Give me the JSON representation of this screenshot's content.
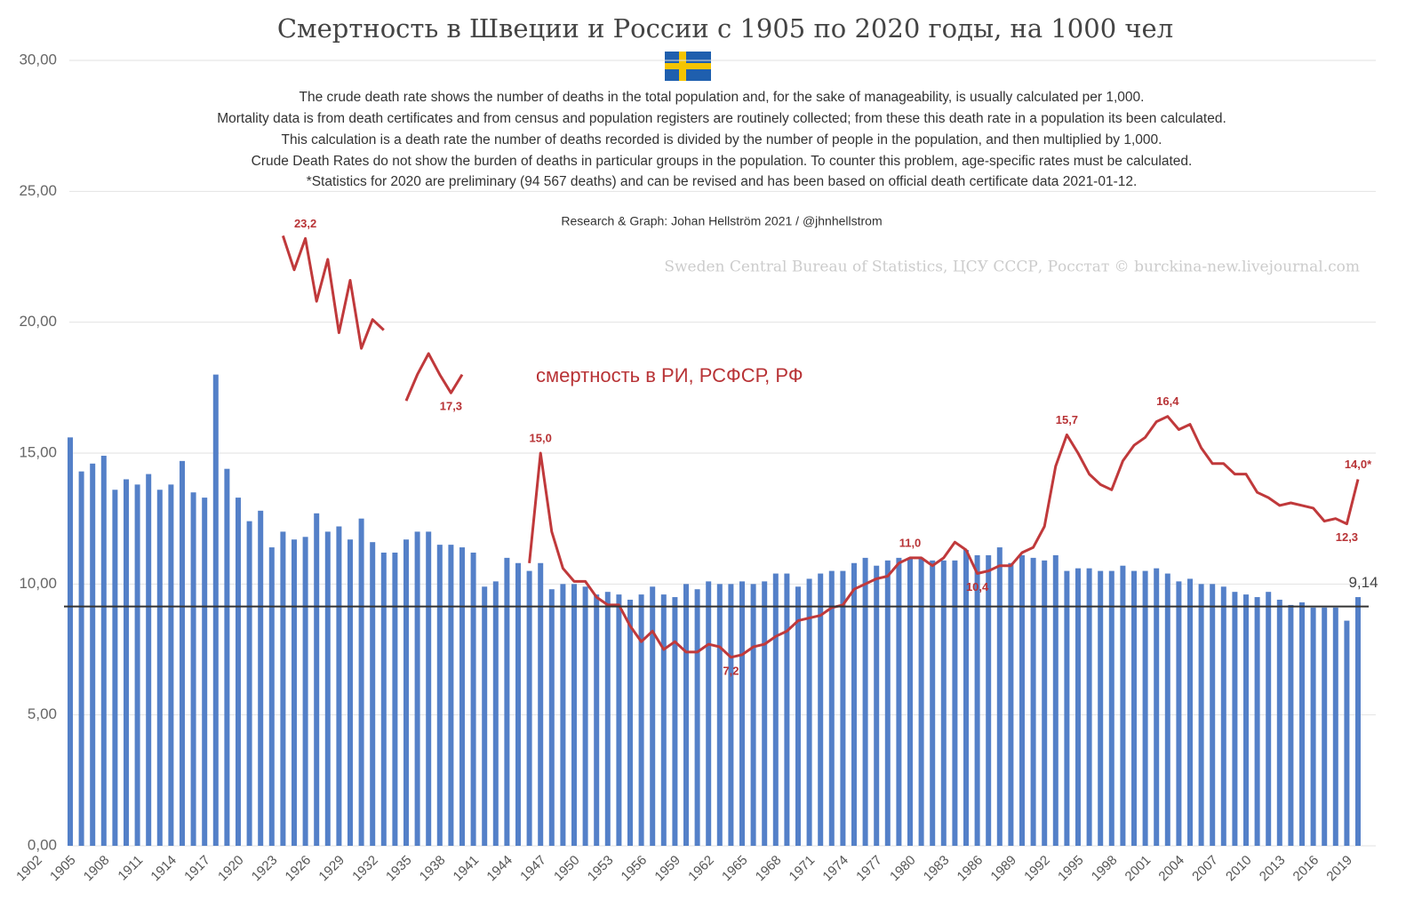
{
  "chart_data": {
    "type": "bar",
    "title": "Смертность в Швеции и России с 1905 по 2020 годы, на 1000 чел",
    "notes": [
      "The crude death rate shows the number of deaths in the total population and, for the sake of manageability, is usually calculated per 1,000.",
      "Mortality data is from death certificates and from census and population registers are routinely collected; from these this death rate in a population its been calculated.",
      "This calculation is a death rate the number of deaths recorded is divided by the number of people in the population, and then multiplied by 1,000.",
      "Crude Death Rates do not show the burden of deaths in particular groups in the population. To counter this problem, age-specific rates must be calculated.",
      "*Statistics for 2020 are preliminary (94 567 deaths) and can be revised and has been based on official death certificate data 2021-01-12."
    ],
    "credit": "Research & Graph: Johan Hellström 2021 / @jhnhellstrom",
    "source": "Sweden Central Bureau of Statistics, ЦСУ СССР, Росстат © burckina-new.livejournal.com",
    "categories": [
      1902,
      null,
      null,
      1905,
      null,
      null,
      1908,
      null,
      null,
      1911,
      null,
      null,
      1914,
      null,
      null,
      1917,
      null,
      null,
      1920,
      null,
      null,
      1923,
      null,
      null,
      1926,
      null,
      null,
      1929,
      null,
      null,
      1932,
      null,
      null,
      1935,
      null,
      null,
      1938,
      null,
      null,
      1941,
      null,
      null,
      1944,
      null,
      null,
      1947,
      null,
      null,
      1950,
      null,
      null,
      1953,
      null,
      null,
      1956,
      null,
      null,
      1959,
      null,
      null,
      1962,
      null,
      null,
      1965,
      null,
      null,
      1968,
      null,
      null,
      1971,
      null,
      null,
      1974,
      null,
      null,
      1977,
      null,
      null,
      1980,
      null,
      null,
      1983,
      null,
      null,
      1986,
      null,
      null,
      1989,
      null,
      null,
      1992,
      null,
      null,
      1995,
      null,
      null,
      1998,
      null,
      null,
      2001,
      null,
      null,
      2004,
      null,
      null,
      2007,
      null,
      null,
      2010,
      null,
      null,
      2013,
      null,
      null,
      2016,
      null,
      null,
      2019,
      null
    ],
    "series": [
      {
        "type": "bar",
        "color": "#5480c8",
        "values": [
          null,
          null,
          null,
          15.6,
          14.3,
          14.6,
          14.9,
          13.6,
          14.0,
          13.8,
          14.2,
          13.6,
          13.8,
          14.7,
          13.5,
          13.3,
          18.0,
          14.4,
          13.3,
          12.4,
          12.8,
          11.4,
          12.0,
          11.7,
          11.8,
          12.7,
          12.0,
          12.2,
          11.7,
          12.5,
          11.6,
          11.2,
          11.2,
          11.7,
          12.0,
          12.0,
          11.5,
          11.5,
          11.4,
          11.2,
          9.9,
          10.1,
          11.0,
          10.8,
          10.5,
          10.8,
          9.8,
          10.0,
          10.0,
          9.9,
          9.6,
          9.7,
          9.6,
          9.4,
          9.6,
          9.9,
          9.6,
          9.5,
          10.0,
          9.8,
          10.1,
          10.0,
          10.0,
          10.1,
          10.0,
          10.1,
          10.4,
          10.4,
          9.9,
          10.2,
          10.4,
          10.5,
          10.5,
          10.8,
          11.0,
          10.7,
          10.9,
          11.0,
          11.0,
          11.0,
          10.9,
          10.9,
          10.9,
          11.3,
          11.1,
          11.1,
          11.4,
          10.8,
          11.1,
          11.0,
          10.9,
          11.1,
          10.5,
          10.6,
          10.6,
          10.5,
          10.5,
          10.7,
          10.5,
          10.5,
          10.6,
          10.4,
          10.1,
          10.2,
          10.0,
          10.0,
          9.9,
          9.7,
          9.6,
          9.5,
          9.7,
          9.4,
          9.2,
          9.3,
          9.1,
          9.1,
          9.1,
          8.6,
          9.5
        ]
      },
      {
        "type": "line",
        "name": "смертность в РИ, РСФСР, РФ",
        "color": "#c0393b",
        "values": [
          null,
          null,
          null,
          null,
          null,
          null,
          null,
          null,
          null,
          null,
          null,
          null,
          null,
          null,
          null,
          null,
          null,
          null,
          null,
          null,
          null,
          null,
          23.3,
          22.0,
          23.2,
          20.8,
          22.4,
          19.6,
          21.6,
          19.0,
          20.1,
          19.7,
          null,
          17.0,
          18.0,
          18.8,
          18.0,
          17.3,
          18.0,
          null,
          null,
          null,
          null,
          null,
          10.8,
          15.0,
          12.0,
          10.6,
          10.1,
          10.1,
          9.5,
          9.2,
          9.2,
          8.4,
          7.8,
          8.2,
          7.5,
          7.8,
          7.4,
          7.4,
          7.7,
          7.6,
          7.2,
          7.3,
          7.6,
          7.7,
          8.0,
          8.2,
          8.6,
          8.7,
          8.8,
          9.1,
          9.2,
          9.8,
          10.0,
          10.2,
          10.3,
          10.8,
          11.0,
          11.0,
          10.7,
          11.0,
          11.6,
          11.3,
          10.4,
          10.5,
          10.7,
          10.7,
          11.2,
          11.4,
          12.2,
          14.5,
          15.7,
          15.0,
          14.2,
          13.8,
          13.6,
          14.7,
          15.3,
          15.6,
          16.2,
          16.4,
          15.9,
          16.1,
          15.2,
          14.6,
          14.6,
          14.2,
          14.2,
          13.5,
          13.3,
          13.0,
          13.1,
          13.0,
          12.9,
          12.4,
          12.5,
          12.3,
          14.0
        ],
        "value_labels": [
          null,
          null,
          null,
          null,
          null,
          null,
          null,
          null,
          null,
          null,
          null,
          null,
          null,
          null,
          null,
          null,
          null,
          null,
          null,
          null,
          null,
          null,
          null,
          null,
          "23,2",
          null,
          null,
          null,
          null,
          null,
          null,
          null,
          null,
          null,
          null,
          null,
          null,
          "17,3",
          null,
          null,
          null,
          null,
          null,
          null,
          null,
          "15,0",
          null,
          null,
          null,
          null,
          null,
          null,
          null,
          null,
          null,
          null,
          null,
          null,
          null,
          null,
          null,
          null,
          "7,2",
          null,
          null,
          null,
          null,
          null,
          null,
          null,
          null,
          null,
          null,
          null,
          null,
          null,
          null,
          null,
          "11,0",
          null,
          null,
          null,
          null,
          null,
          "10,4",
          null,
          null,
          null,
          null,
          null,
          null,
          null,
          "15,7",
          null,
          null,
          null,
          null,
          null,
          null,
          null,
          null,
          "16,4",
          null,
          null,
          null,
          null,
          null,
          null,
          null,
          null,
          null,
          null,
          null,
          null,
          null,
          null,
          null,
          "12,3",
          "14,0*"
        ]
      }
    ],
    "reference_line": {
      "value": 9.14,
      "label": "9,14"
    },
    "ylim": [
      0,
      30
    ],
    "yticks": [
      {
        "value": 0,
        "label": "0,00"
      },
      {
        "value": 5,
        "label": "5,00"
      },
      {
        "value": 10,
        "label": "10,00"
      },
      {
        "value": 15,
        "label": "15,00"
      },
      {
        "value": 20,
        "label": "20,00"
      },
      {
        "value": 25,
        "label": "25,00"
      },
      {
        "value": 30,
        "label": "30,00"
      }
    ],
    "grid": true
  }
}
